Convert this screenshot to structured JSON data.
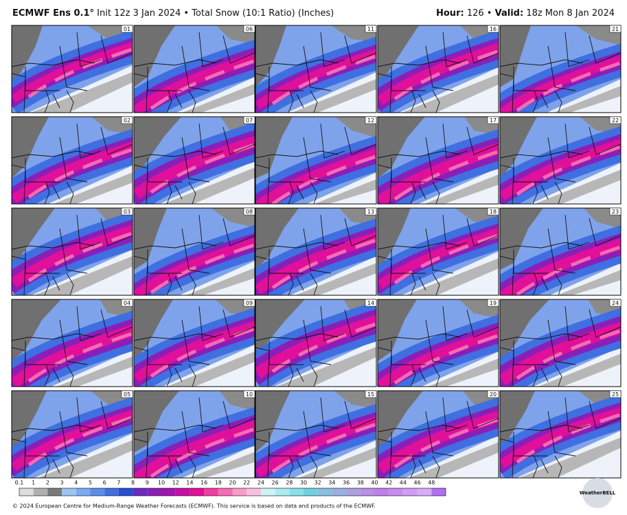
{
  "header": {
    "model": "ECMWF Ens 0.1°",
    "init": "Init 12z 3 Jan 2024",
    "separator": "•",
    "product": "Total Snow (10:1 Ratio) (Inches)",
    "hour_label": "Hour:",
    "hour": "126",
    "valid_label": "Valid:",
    "valid": "18z Mon 8 Jan 2024"
  },
  "members": [
    "01",
    "02",
    "03",
    "04",
    "05",
    "06",
    "07",
    "08",
    "09",
    "10",
    "11",
    "12",
    "13",
    "14",
    "15",
    "16",
    "17",
    "18",
    "19",
    "20",
    "21",
    "22",
    "23",
    "24",
    "25"
  ],
  "colorbar": {
    "labels": [
      "0.1",
      "1",
      "2",
      "3",
      "4",
      "5",
      "6",
      "7",
      "8",
      "9",
      "10",
      "12",
      "14",
      "16",
      "18",
      "20",
      "22",
      "24",
      "26",
      "28",
      "30",
      "32",
      "34",
      "36",
      "38",
      "40",
      "42",
      "44",
      "46",
      "48"
    ],
    "colors": [
      "#dddddd",
      "#b0b0b0",
      "#7a7a7a",
      "#9ec3f5",
      "#7aaaf0",
      "#5b8ee8",
      "#3f6fe0",
      "#2a4fd0",
      "#6a2bc0",
      "#8a1fb8",
      "#a515b0",
      "#c80fa5",
      "#e0109a",
      "#f03c9f",
      "#f56cb4",
      "#f79cc8",
      "#f8c0dc",
      "#cdf3f5",
      "#aaecf0",
      "#88e0ea",
      "#70d0e2",
      "#88c0e0",
      "#98b0e0",
      "#a8a0e0",
      "#b890e6",
      "#c080ea",
      "#c88cf0",
      "#d09cf4",
      "#d8acf8",
      "#b070f0"
    ]
  },
  "footer": "© 2024 European Centre for Medium-Range Weather Forecasts (ECMWF). This service is based on data and products of the ECMWF.",
  "logo": "WeatherBELL"
}
